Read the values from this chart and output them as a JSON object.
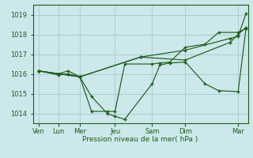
{
  "background_color": "#cce8ea",
  "grid_color": "#aacfd2",
  "line_color": "#1e5c1e",
  "ylabel_text": "Pression niveau de la mer( hPa )",
  "ylim": [
    1013.5,
    1019.5
  ],
  "yticks": [
    1014,
    1015,
    1016,
    1017,
    1018,
    1019
  ],
  "xlim": [
    0,
    11.0
  ],
  "x_tick_positions": [
    0.3,
    1.3,
    2.4,
    4.2,
    6.1,
    7.8,
    10.5
  ],
  "x_tick_labels": [
    "Ven",
    "Lun",
    "Mer",
    "Jeu",
    "Sam",
    "Dim",
    "Mar"
  ],
  "series": [
    {
      "x": [
        0.3,
        1.3,
        1.8,
        2.4,
        3.0,
        3.8,
        4.2,
        4.7,
        6.1,
        6.5,
        7.0,
        7.8,
        8.8,
        9.5,
        10.5,
        10.9
      ],
      "y": [
        1016.15,
        1015.95,
        1016.0,
        1015.85,
        1014.85,
        1014.0,
        1013.85,
        1013.7,
        1015.5,
        1016.45,
        1016.55,
        1016.6,
        1015.5,
        1015.15,
        1015.1,
        1018.3
      ]
    },
    {
      "x": [
        0.3,
        1.3,
        1.8,
        2.4,
        3.0,
        3.8,
        4.2,
        4.7,
        6.1,
        6.5,
        7.0,
        7.8,
        8.8,
        9.5,
        10.5,
        10.9
      ],
      "y": [
        1016.15,
        1016.0,
        1016.15,
        1015.85,
        1014.1,
        1014.1,
        1014.1,
        1016.5,
        1016.5,
        1016.55,
        1016.6,
        1017.35,
        1017.5,
        1018.1,
        1018.1,
        1018.3
      ]
    },
    {
      "x": [
        0.3,
        2.4,
        5.5,
        7.8,
        10.1,
        10.5,
        10.9
      ],
      "y": [
        1016.15,
        1015.85,
        1016.85,
        1017.2,
        1017.8,
        1017.9,
        1019.05
      ]
    },
    {
      "x": [
        0.3,
        2.4,
        5.5,
        7.8,
        10.1,
        10.5,
        10.9
      ],
      "y": [
        1016.15,
        1015.85,
        1016.85,
        1016.7,
        1017.6,
        1018.0,
        1018.35
      ]
    }
  ]
}
